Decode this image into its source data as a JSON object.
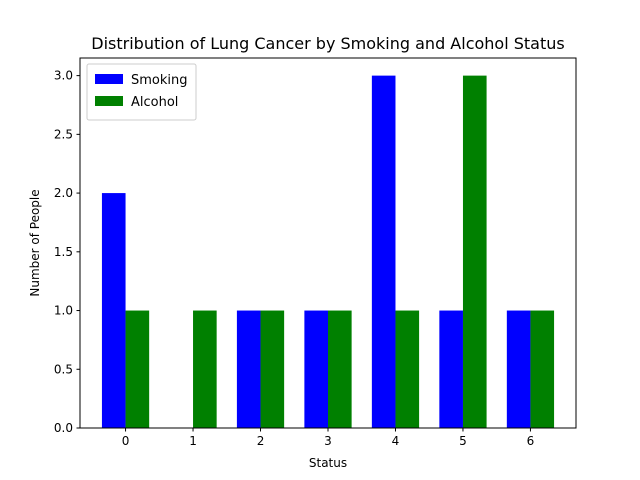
{
  "chart_data": {
    "type": "bar",
    "title": "Distribution of Lung Cancer by Smoking and Alcohol Status",
    "xlabel": "Status",
    "ylabel": "Number of People",
    "categories": [
      "0",
      "1",
      "2",
      "3",
      "4",
      "5",
      "6"
    ],
    "series": [
      {
        "name": "Smoking",
        "color": "#0000ff",
        "values": [
          2,
          0,
          1,
          1,
          3,
          1,
          1
        ]
      },
      {
        "name": "Alcohol",
        "color": "#008000",
        "values": [
          1,
          1,
          1,
          1,
          1,
          3,
          1
        ]
      }
    ],
    "ylim": [
      0,
      3.15
    ],
    "yticks": [
      "0.0",
      "0.5",
      "1.0",
      "1.5",
      "2.0",
      "2.5",
      "3.0"
    ],
    "grid": false,
    "legend_position": "top-left"
  }
}
